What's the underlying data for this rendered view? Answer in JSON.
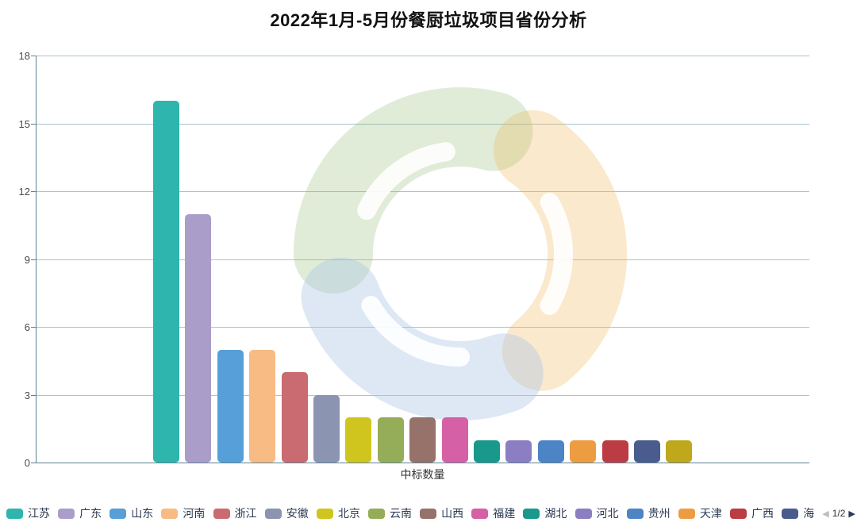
{
  "chart": {
    "title": "2022年1月-5月份餐厨垃圾项目省份分析",
    "xlabel": "中标数量"
  },
  "chart_data": {
    "type": "bar",
    "title": "2022年1月-5月份餐厨垃圾项目省份分析",
    "xlabel": "中标数量",
    "ylabel": "",
    "ylim": [
      0,
      18
    ],
    "yticks": [
      0,
      3,
      6,
      9,
      12,
      15,
      18
    ],
    "grid": true,
    "legend_position": "bottom",
    "series": [
      {
        "name": "江苏",
        "value": 16,
        "color": "#2eb5ad"
      },
      {
        "name": "广东",
        "value": 11,
        "color": "#ab9dc9"
      },
      {
        "name": "山东",
        "value": 5,
        "color": "#569fd8"
      },
      {
        "name": "河南",
        "value": 5,
        "color": "#f8bb84"
      },
      {
        "name": "浙江",
        "value": 4,
        "color": "#c96b70"
      },
      {
        "name": "安徽",
        "value": 3,
        "color": "#8b94b0"
      },
      {
        "name": "北京",
        "value": 2,
        "color": "#d0c51f"
      },
      {
        "name": "云南",
        "value": 2,
        "color": "#95ad58"
      },
      {
        "name": "山西",
        "value": 2,
        "color": "#97726a"
      },
      {
        "name": "福建",
        "value": 2,
        "color": "#d560a5"
      },
      {
        "name": "湖北",
        "value": 1,
        "color": "#18998c"
      },
      {
        "name": "河北",
        "value": 1,
        "color": "#8b7ec3"
      },
      {
        "name": "贵州",
        "value": 1,
        "color": "#4d84c6"
      },
      {
        "name": "天津",
        "value": 1,
        "color": "#ee9c42"
      },
      {
        "name": "广西",
        "value": 1,
        "color": "#bc3c43"
      },
      {
        "name": "海",
        "value": 1,
        "color": "#4a5c8e"
      },
      {
        "name": null,
        "value": 1,
        "color": "#bfa81c"
      }
    ]
  },
  "legend": {
    "items": [
      {
        "label": "江苏",
        "color": "#2eb5ad"
      },
      {
        "label": "广东",
        "color": "#ab9dc9"
      },
      {
        "label": "山东",
        "color": "#569fd8"
      },
      {
        "label": "河南",
        "color": "#f8bb84"
      },
      {
        "label": "浙江",
        "color": "#c96b70"
      },
      {
        "label": "安徽",
        "color": "#8b94b0"
      },
      {
        "label": "北京",
        "color": "#d0c51f"
      },
      {
        "label": "云南",
        "color": "#95ad58"
      },
      {
        "label": "山西",
        "color": "#97726a"
      },
      {
        "label": "福建",
        "color": "#d560a5"
      },
      {
        "label": "湖北",
        "color": "#18998c"
      },
      {
        "label": "河北",
        "color": "#8b7ec3"
      },
      {
        "label": "贵州",
        "color": "#4d84c6"
      },
      {
        "label": "天津",
        "color": "#ee9c42"
      },
      {
        "label": "广西",
        "color": "#bc3c43"
      },
      {
        "label": "海",
        "color": "#4a5c8e"
      }
    ],
    "pagination": {
      "prev_icon": "◀",
      "label": "1/2",
      "next_icon": "▶"
    }
  },
  "watermark": {
    "icon": "three-leaf-circle-logo",
    "colors": {
      "green": "#8fba70",
      "orange": "#f0b65a",
      "blue": "#a9c3e6"
    }
  },
  "style": {
    "grid_color": "#a8c4cd",
    "axis_color": "#5f8191",
    "tick_label_color": "#4a4a4a",
    "legend_text_color": "#2b3a52"
  }
}
